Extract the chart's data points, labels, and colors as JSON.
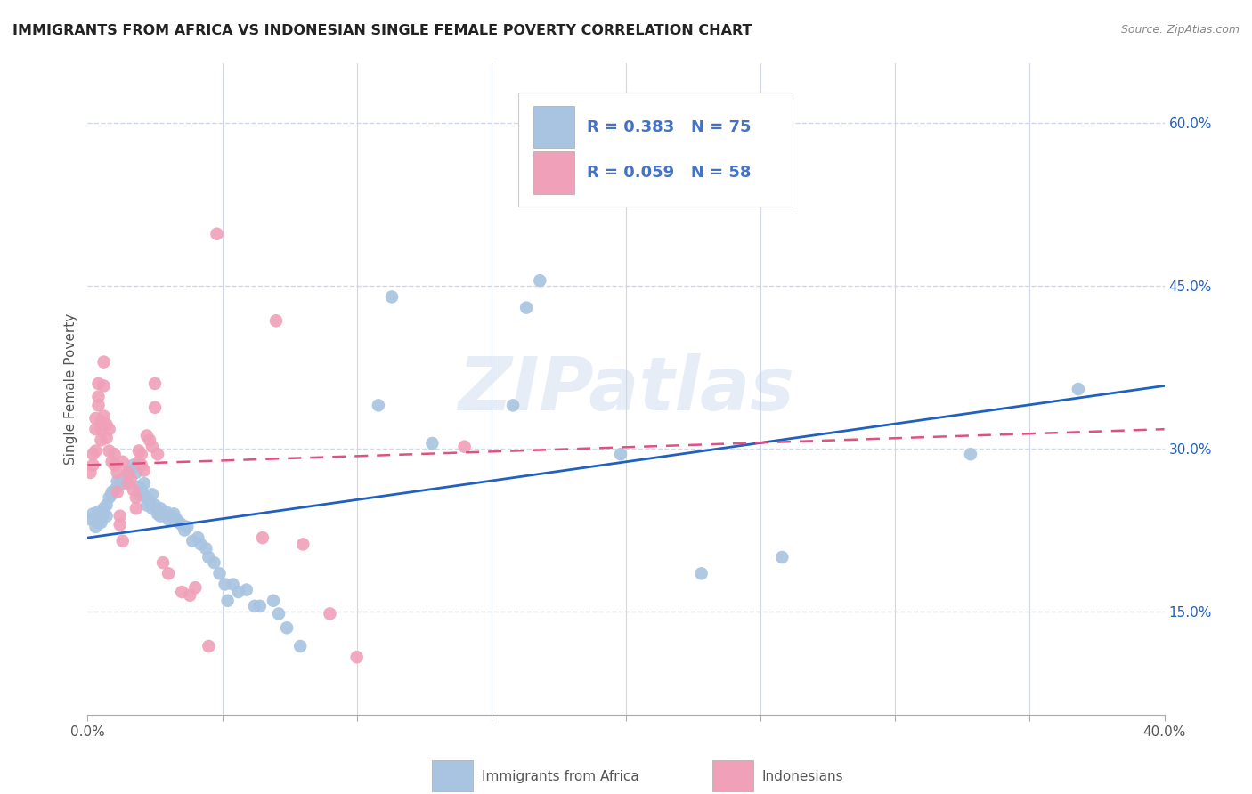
{
  "title": "IMMIGRANTS FROM AFRICA VS INDONESIAN SINGLE FEMALE POVERTY CORRELATION CHART",
  "source": "Source: ZipAtlas.com",
  "ylabel": "Single Female Poverty",
  "right_yticks": [
    "60.0%",
    "45.0%",
    "30.0%",
    "15.0%"
  ],
  "right_ytick_vals": [
    0.6,
    0.45,
    0.3,
    0.15
  ],
  "legend1_R": "0.383",
  "legend1_N": "75",
  "legend2_R": "0.059",
  "legend2_N": "58",
  "watermark": "ZIPatlas",
  "scatter_blue": [
    [
      0.001,
      0.235
    ],
    [
      0.002,
      0.24
    ],
    [
      0.003,
      0.235
    ],
    [
      0.003,
      0.228
    ],
    [
      0.004,
      0.242
    ],
    [
      0.004,
      0.232
    ],
    [
      0.005,
      0.238
    ],
    [
      0.005,
      0.232
    ],
    [
      0.006,
      0.24
    ],
    [
      0.006,
      0.245
    ],
    [
      0.007,
      0.248
    ],
    [
      0.007,
      0.238
    ],
    [
      0.008,
      0.255
    ],
    [
      0.009,
      0.258
    ],
    [
      0.009,
      0.26
    ],
    [
      0.01,
      0.262
    ],
    [
      0.011,
      0.27
    ],
    [
      0.012,
      0.268
    ],
    [
      0.013,
      0.272
    ],
    [
      0.013,
      0.268
    ],
    [
      0.015,
      0.278
    ],
    [
      0.016,
      0.28
    ],
    [
      0.017,
      0.285
    ],
    [
      0.018,
      0.278
    ],
    [
      0.019,
      0.265
    ],
    [
      0.019,
      0.258
    ],
    [
      0.02,
      0.262
    ],
    [
      0.021,
      0.268
    ],
    [
      0.022,
      0.255
    ],
    [
      0.022,
      0.248
    ],
    [
      0.023,
      0.252
    ],
    [
      0.024,
      0.258
    ],
    [
      0.024,
      0.245
    ],
    [
      0.025,
      0.248
    ],
    [
      0.026,
      0.24
    ],
    [
      0.027,
      0.245
    ],
    [
      0.027,
      0.238
    ],
    [
      0.029,
      0.242
    ],
    [
      0.03,
      0.235
    ],
    [
      0.031,
      0.238
    ],
    [
      0.032,
      0.24
    ],
    [
      0.033,
      0.235
    ],
    [
      0.034,
      0.232
    ],
    [
      0.035,
      0.23
    ],
    [
      0.036,
      0.225
    ],
    [
      0.037,
      0.228
    ],
    [
      0.039,
      0.215
    ],
    [
      0.041,
      0.218
    ],
    [
      0.042,
      0.212
    ],
    [
      0.044,
      0.208
    ],
    [
      0.045,
      0.2
    ],
    [
      0.047,
      0.195
    ],
    [
      0.049,
      0.185
    ],
    [
      0.051,
      0.175
    ],
    [
      0.052,
      0.16
    ],
    [
      0.054,
      0.175
    ],
    [
      0.056,
      0.168
    ],
    [
      0.059,
      0.17
    ],
    [
      0.062,
      0.155
    ],
    [
      0.064,
      0.155
    ],
    [
      0.069,
      0.16
    ],
    [
      0.071,
      0.148
    ],
    [
      0.074,
      0.135
    ],
    [
      0.079,
      0.118
    ],
    [
      0.108,
      0.34
    ],
    [
      0.113,
      0.44
    ],
    [
      0.128,
      0.305
    ],
    [
      0.158,
      0.34
    ],
    [
      0.163,
      0.43
    ],
    [
      0.168,
      0.455
    ],
    [
      0.198,
      0.295
    ],
    [
      0.228,
      0.185
    ],
    [
      0.258,
      0.2
    ],
    [
      0.328,
      0.295
    ],
    [
      0.368,
      0.355
    ]
  ],
  "scatter_pink": [
    [
      0.001,
      0.278
    ],
    [
      0.002,
      0.285
    ],
    [
      0.002,
      0.295
    ],
    [
      0.003,
      0.318
    ],
    [
      0.003,
      0.328
    ],
    [
      0.003,
      0.298
    ],
    [
      0.004,
      0.34
    ],
    [
      0.004,
      0.348
    ],
    [
      0.004,
      0.36
    ],
    [
      0.005,
      0.325
    ],
    [
      0.005,
      0.318
    ],
    [
      0.005,
      0.308
    ],
    [
      0.006,
      0.33
    ],
    [
      0.006,
      0.358
    ],
    [
      0.006,
      0.38
    ],
    [
      0.007,
      0.322
    ],
    [
      0.007,
      0.31
    ],
    [
      0.008,
      0.318
    ],
    [
      0.008,
      0.298
    ],
    [
      0.009,
      0.288
    ],
    [
      0.01,
      0.295
    ],
    [
      0.01,
      0.285
    ],
    [
      0.011,
      0.278
    ],
    [
      0.011,
      0.26
    ],
    [
      0.012,
      0.238
    ],
    [
      0.012,
      0.23
    ],
    [
      0.013,
      0.215
    ],
    [
      0.013,
      0.288
    ],
    [
      0.015,
      0.268
    ],
    [
      0.015,
      0.278
    ],
    [
      0.016,
      0.272
    ],
    [
      0.017,
      0.262
    ],
    [
      0.018,
      0.255
    ],
    [
      0.018,
      0.245
    ],
    [
      0.019,
      0.298
    ],
    [
      0.019,
      0.288
    ],
    [
      0.02,
      0.295
    ],
    [
      0.02,
      0.285
    ],
    [
      0.021,
      0.28
    ],
    [
      0.022,
      0.312
    ],
    [
      0.023,
      0.308
    ],
    [
      0.024,
      0.302
    ],
    [
      0.025,
      0.338
    ],
    [
      0.025,
      0.36
    ],
    [
      0.026,
      0.295
    ],
    [
      0.028,
      0.195
    ],
    [
      0.03,
      0.185
    ],
    [
      0.035,
      0.168
    ],
    [
      0.038,
      0.165
    ],
    [
      0.04,
      0.172
    ],
    [
      0.045,
      0.118
    ],
    [
      0.048,
      0.498
    ],
    [
      0.065,
      0.218
    ],
    [
      0.07,
      0.418
    ],
    [
      0.08,
      0.212
    ],
    [
      0.09,
      0.148
    ],
    [
      0.1,
      0.108
    ],
    [
      0.14,
      0.302
    ]
  ],
  "blue_line_x": [
    0.0,
    0.4
  ],
  "blue_line_y": [
    0.218,
    0.358
  ],
  "pink_line_x": [
    0.0,
    0.4
  ],
  "pink_line_y": [
    0.285,
    0.318
  ],
  "blue_scatter_color": "#a8c4e0",
  "pink_scatter_color": "#f0a0b8",
  "blue_line_color": "#2060c0",
  "pink_line_color": "#e05080",
  "background_color": "#ffffff",
  "grid_color": "#d0d8e8",
  "legend_color": "#4472c4",
  "xmin": 0.0,
  "xmax": 0.4,
  "ymin": 0.055,
  "ymax": 0.655
}
